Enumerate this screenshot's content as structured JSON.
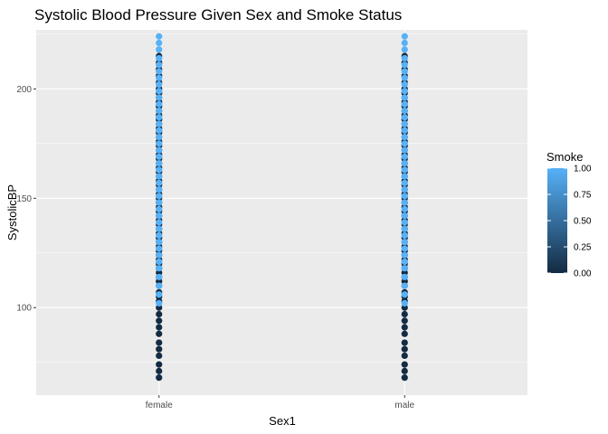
{
  "chart_data": {
    "type": "scatter",
    "title": "Systolic Blood Pressure Given Sex and Smoke Status",
    "xlabel": "Sex1",
    "ylabel": "SystolicBP",
    "categories": [
      "female",
      "male"
    ],
    "ylim": [
      60,
      227
    ],
    "yticks": [
      100,
      150,
      200
    ],
    "grid": true,
    "legend": {
      "title": "Smoke",
      "position": "right",
      "range": [
        0,
        1
      ],
      "ticks": [
        "0.00",
        "0.25",
        "0.50",
        "0.75",
        "1.00"
      ],
      "low_color": "#132B43",
      "high_color": "#56B1F7"
    },
    "series": [
      {
        "category": "female",
        "smoke_0": [
          68,
          71,
          74,
          78,
          81,
          84,
          88,
          91,
          94,
          97,
          100,
          103,
          105,
          107,
          110,
          112,
          114,
          116,
          118,
          120,
          122,
          124,
          126,
          128,
          130,
          132,
          134,
          136,
          138,
          140,
          142,
          144,
          146,
          148,
          150,
          152,
          154,
          156,
          158,
          160,
          162,
          164,
          166,
          168,
          170,
          172,
          174,
          176,
          178,
          180,
          182,
          184,
          186,
          188,
          190,
          192,
          194,
          196,
          198,
          200,
          203,
          206,
          209,
          212,
          215
        ],
        "smoke_1": [
          102,
          106,
          110,
          114,
          118,
          121,
          124,
          127,
          130,
          133,
          136,
          139,
          142,
          145,
          148,
          151,
          154,
          157,
          160,
          163,
          166,
          169,
          172,
          175,
          178,
          181,
          184,
          187,
          190,
          193,
          196,
          199,
          202,
          205,
          208,
          211,
          214,
          218,
          221,
          224
        ]
      },
      {
        "category": "male",
        "smoke_0": [
          68,
          71,
          74,
          78,
          81,
          84,
          88,
          91,
          94,
          97,
          100,
          103,
          105,
          107,
          110,
          112,
          114,
          116,
          118,
          120,
          122,
          124,
          126,
          128,
          130,
          132,
          134,
          136,
          138,
          140,
          142,
          144,
          146,
          148,
          150,
          152,
          154,
          156,
          158,
          160,
          162,
          164,
          166,
          168,
          170,
          172,
          174,
          176,
          178,
          180,
          182,
          184,
          186,
          188,
          190,
          192,
          194,
          196,
          198,
          200,
          203,
          206,
          209,
          212,
          215
        ],
        "smoke_1": [
          102,
          106,
          110,
          114,
          118,
          121,
          124,
          127,
          130,
          133,
          136,
          139,
          142,
          145,
          148,
          151,
          154,
          157,
          160,
          163,
          166,
          169,
          172,
          175,
          178,
          181,
          184,
          187,
          190,
          193,
          196,
          199,
          202,
          205,
          208,
          211,
          214,
          218,
          221,
          224
        ]
      }
    ]
  }
}
